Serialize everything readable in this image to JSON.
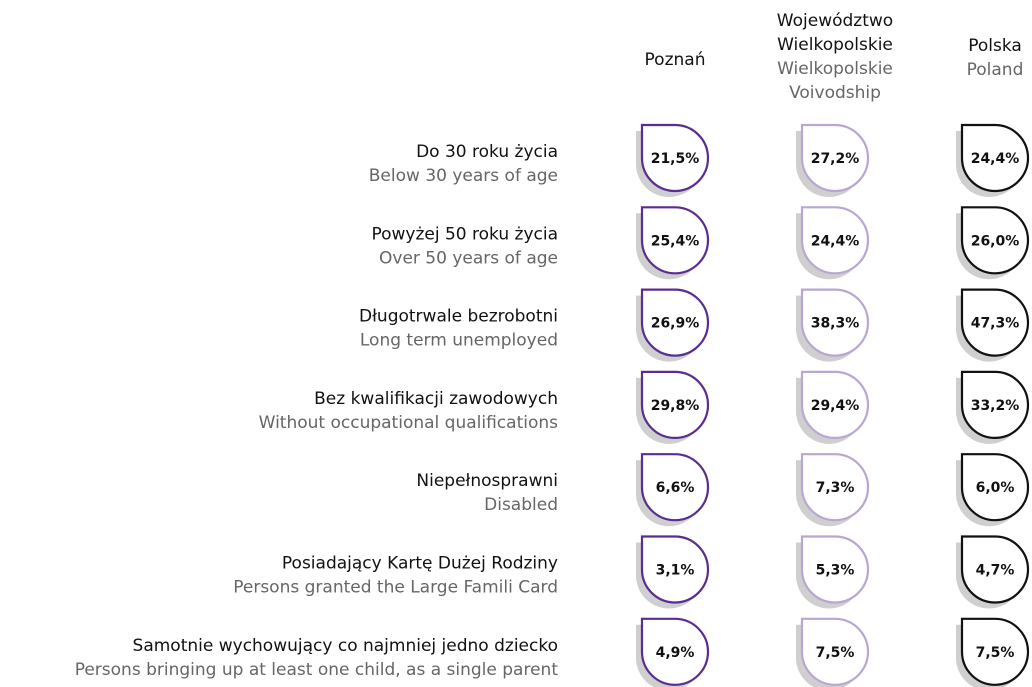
{
  "columns": [
    {
      "pl": [
        "Poznań"
      ],
      "en": []
    },
    {
      "pl": [
        "Województwo",
        "Wielkopolskie"
      ],
      "en": [
        "Wielkopolskie",
        "Voivodship"
      ]
    },
    {
      "pl": [
        "Polska"
      ],
      "en": [
        "Poland"
      ]
    }
  ],
  "rows": [
    {
      "pl": "Do 30 roku życia",
      "en": "Below 30 years of age",
      "values": [
        "21,5%",
        "27,2%",
        "24,4%"
      ]
    },
    {
      "pl": "Powyżej 50 roku życia",
      "en": "Over 50 years of age",
      "values": [
        "25,4%",
        "24,4%",
        "26,0%"
      ]
    },
    {
      "pl": "Długotrwale bezrobotni",
      "en": "Long term unemployed",
      "values": [
        "26,9%",
        "38,3%",
        "47,3%"
      ]
    },
    {
      "pl": "Bez kwalifikacji zawodowych",
      "en": "Without occupational qualifications",
      "values": [
        "29,8%",
        "29,4%",
        "33,2%"
      ]
    },
    {
      "pl": "Niepełnosprawni",
      "en": "Disabled",
      "values": [
        "6,6%",
        "7,3%",
        "6,0%"
      ]
    },
    {
      "pl": "Posiadający Kartę Dużej Rodziny",
      "en": "Persons granted the Large Famili Card",
      "values": [
        "3,1%",
        "5,3%",
        "4,7%"
      ]
    },
    {
      "pl": "Samotnie wychowujący co najmniej jedno dziecko",
      "en": "Persons bringing up at least one child, as a single parent",
      "values": [
        "4,9%",
        "7,5%",
        "7,5%"
      ]
    }
  ]
}
